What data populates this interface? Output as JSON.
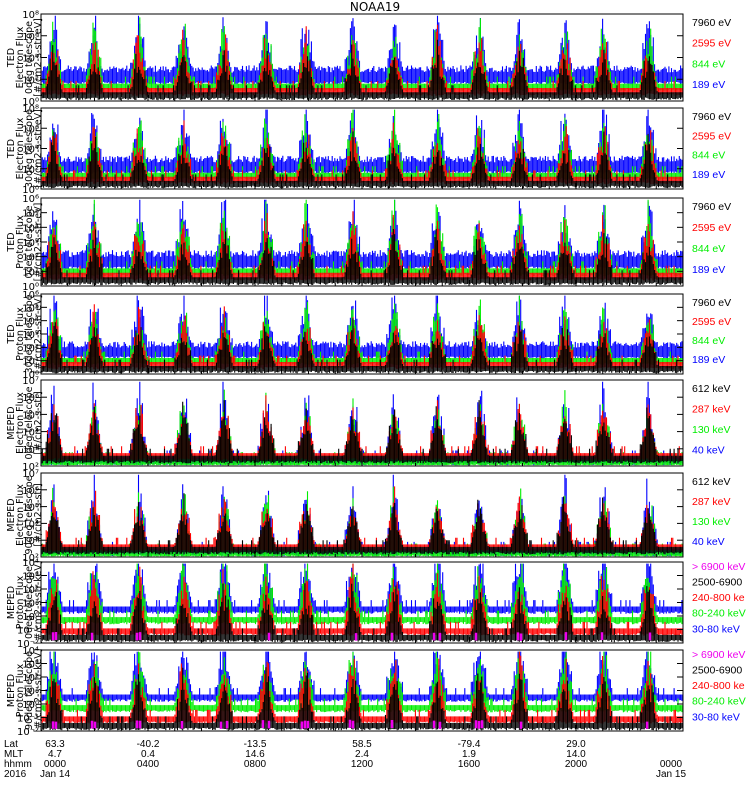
{
  "title": "NOAA19",
  "colors": {
    "black": "#000000",
    "red": "#ff0000",
    "green": "#00ee00",
    "blue": "#0000ff",
    "magenta": "#ee00ee"
  },
  "chart_data": [
    {
      "type": "line",
      "ylabel": [
        "TED",
        "Electron Flux",
        "0deg telescope",
        "[#/cm2-s-str-eV]"
      ],
      "yscale": "log",
      "ylim": [
        1,
        100000000.0
      ],
      "yticks": [
        "10⁸",
        "10⁶",
        "10⁴",
        "10²",
        "10⁰"
      ],
      "series": [
        {
          "name": "7960 eV",
          "color": "black"
        },
        {
          "name": "2595 eV",
          "color": "red"
        },
        {
          "name": "844 eV",
          "color": "green"
        },
        {
          "name": "189 eV",
          "color": "blue"
        }
      ]
    },
    {
      "type": "line",
      "ylabel": [
        "TED",
        "Electron Flux",
        "30deg telescope",
        "[#/cm2-s-str-eV]"
      ],
      "yscale": "log",
      "ylim": [
        1,
        100000000.0
      ],
      "yticks": [
        "10⁸",
        "10⁶",
        "10⁴",
        "10²",
        "10⁰"
      ],
      "series": [
        {
          "name": "7960 eV",
          "color": "black"
        },
        {
          "name": "2595 eV",
          "color": "red"
        },
        {
          "name": "844 eV",
          "color": "green"
        },
        {
          "name": "189 eV",
          "color": "blue"
        }
      ]
    },
    {
      "type": "line",
      "ylabel": [
        "TED",
        "Proton Flux",
        "0deg telescope",
        "[#/cm2-s-str-eV]"
      ],
      "yscale": "log",
      "ylim": [
        1,
        1000000.0
      ],
      "yticks": [
        "10⁶",
        "10⁵",
        "10⁴",
        "10³",
        "10²",
        "10¹",
        "10⁰"
      ],
      "series": [
        {
          "name": "7960 eV",
          "color": "black"
        },
        {
          "name": "2595 eV",
          "color": "red"
        },
        {
          "name": "844 eV",
          "color": "green"
        },
        {
          "name": "189 eV",
          "color": "blue"
        }
      ]
    },
    {
      "type": "line",
      "ylabel": [
        "TED",
        "Proton Flux",
        "30deg telescope",
        "[#/cm2-s-str-eV]"
      ],
      "yscale": "log",
      "ylim": [
        1,
        1000000.0
      ],
      "yticks": [
        "10⁶",
        "10⁵",
        "10⁴",
        "10³",
        "10²",
        "10¹",
        "10⁰"
      ],
      "series": [
        {
          "name": "7960 eV",
          "color": "black"
        },
        {
          "name": "2595 eV",
          "color": "red"
        },
        {
          "name": "844 eV",
          "color": "green"
        },
        {
          "name": "189 eV",
          "color": "blue"
        }
      ]
    },
    {
      "type": "line",
      "ylabel": [
        "MEPED",
        "Electron Flux",
        "0deg telescope",
        "[#/cm2-s-str]"
      ],
      "yscale": "log",
      "ylim": [
        100,
        10000000.0
      ],
      "yticks": [
        "10⁷",
        "10⁶",
        "10⁵",
        "10⁴",
        "10³",
        "10²"
      ],
      "series": [
        {
          "name": "612 keV",
          "color": "black"
        },
        {
          "name": "287 keV",
          "color": "red"
        },
        {
          "name": "130 keV",
          "color": "green"
        },
        {
          "name": "40 keV",
          "color": "blue"
        }
      ]
    },
    {
      "type": "line",
      "ylabel": [
        "MEPED",
        "Electron Flux",
        "90deg telescope",
        "[#/cm2-s-str]"
      ],
      "yscale": "log",
      "ylim": [
        100,
        10000000.0
      ],
      "yticks": [
        "10⁷",
        "10⁶",
        "10⁵",
        "10⁴",
        "10³",
        "10²"
      ],
      "series": [
        {
          "name": "612 keV",
          "color": "black"
        },
        {
          "name": "287 keV",
          "color": "red"
        },
        {
          "name": "130 keV",
          "color": "green"
        },
        {
          "name": "40 keV",
          "color": "blue"
        }
      ]
    },
    {
      "type": "line",
      "ylabel": [
        "MEPED",
        "Proton Flux",
        "0deg telescope",
        "[#/cm2-s-str-keV]"
      ],
      "yscale": "log",
      "ylim": [
        0.01,
        10000.0
      ],
      "yticks": [
        "10⁴",
        "10³",
        "10²",
        "10¹",
        "10⁰",
        "10⁻¹",
        "10⁻²"
      ],
      "series": [
        {
          "name": "> 6900 keV",
          "color": "magenta"
        },
        {
          "name": "2500-6900",
          "color": "black"
        },
        {
          "name": "240-800 ke",
          "color": "red"
        },
        {
          "name": "80-240 keV",
          "color": "green"
        },
        {
          "name": "30-80 keV",
          "color": "blue"
        }
      ]
    },
    {
      "type": "line",
      "ylabel": [
        "MEPED",
        "Proton Flux",
        "90deg telescope",
        "[#/cm2-s-str-keV]"
      ],
      "yscale": "log",
      "ylim": [
        0.01,
        10000.0
      ],
      "yticks": [
        "10⁴",
        "10³",
        "10²",
        "10¹",
        "10⁰",
        "10⁻¹",
        "10⁻²"
      ],
      "series": [
        {
          "name": "> 6900 keV",
          "color": "magenta"
        },
        {
          "name": "2500-6900",
          "color": "black"
        },
        {
          "name": "240-800 ke",
          "color": "red"
        },
        {
          "name": "80-240 keV",
          "color": "green"
        },
        {
          "name": "30-80 keV",
          "color": "blue"
        }
      ]
    }
  ],
  "x_axis": {
    "row_labels": [
      "Lat",
      "MLT",
      "hhmm",
      "2016"
    ],
    "ticks": [
      {
        "lat": "63.3",
        "mlt": "4.7",
        "hhmm": "0000",
        "date": "Jan 14"
      },
      {
        "lat": "-40.2",
        "mlt": "0.4",
        "hhmm": "0400",
        "date": ""
      },
      {
        "lat": "-13.5",
        "mlt": "14.6",
        "hhmm": "0800",
        "date": ""
      },
      {
        "lat": "58.5",
        "mlt": "2.4",
        "hhmm": "1200",
        "date": ""
      },
      {
        "lat": "-79.4",
        "mlt": "1.9",
        "hhmm": "1600",
        "date": ""
      },
      {
        "lat": "29.0",
        "mlt": "14.0",
        "hhmm": "2000",
        "date": ""
      },
      {
        "lat": "",
        "mlt": "",
        "hhmm": "0000",
        "date": "Jan 15"
      }
    ]
  }
}
